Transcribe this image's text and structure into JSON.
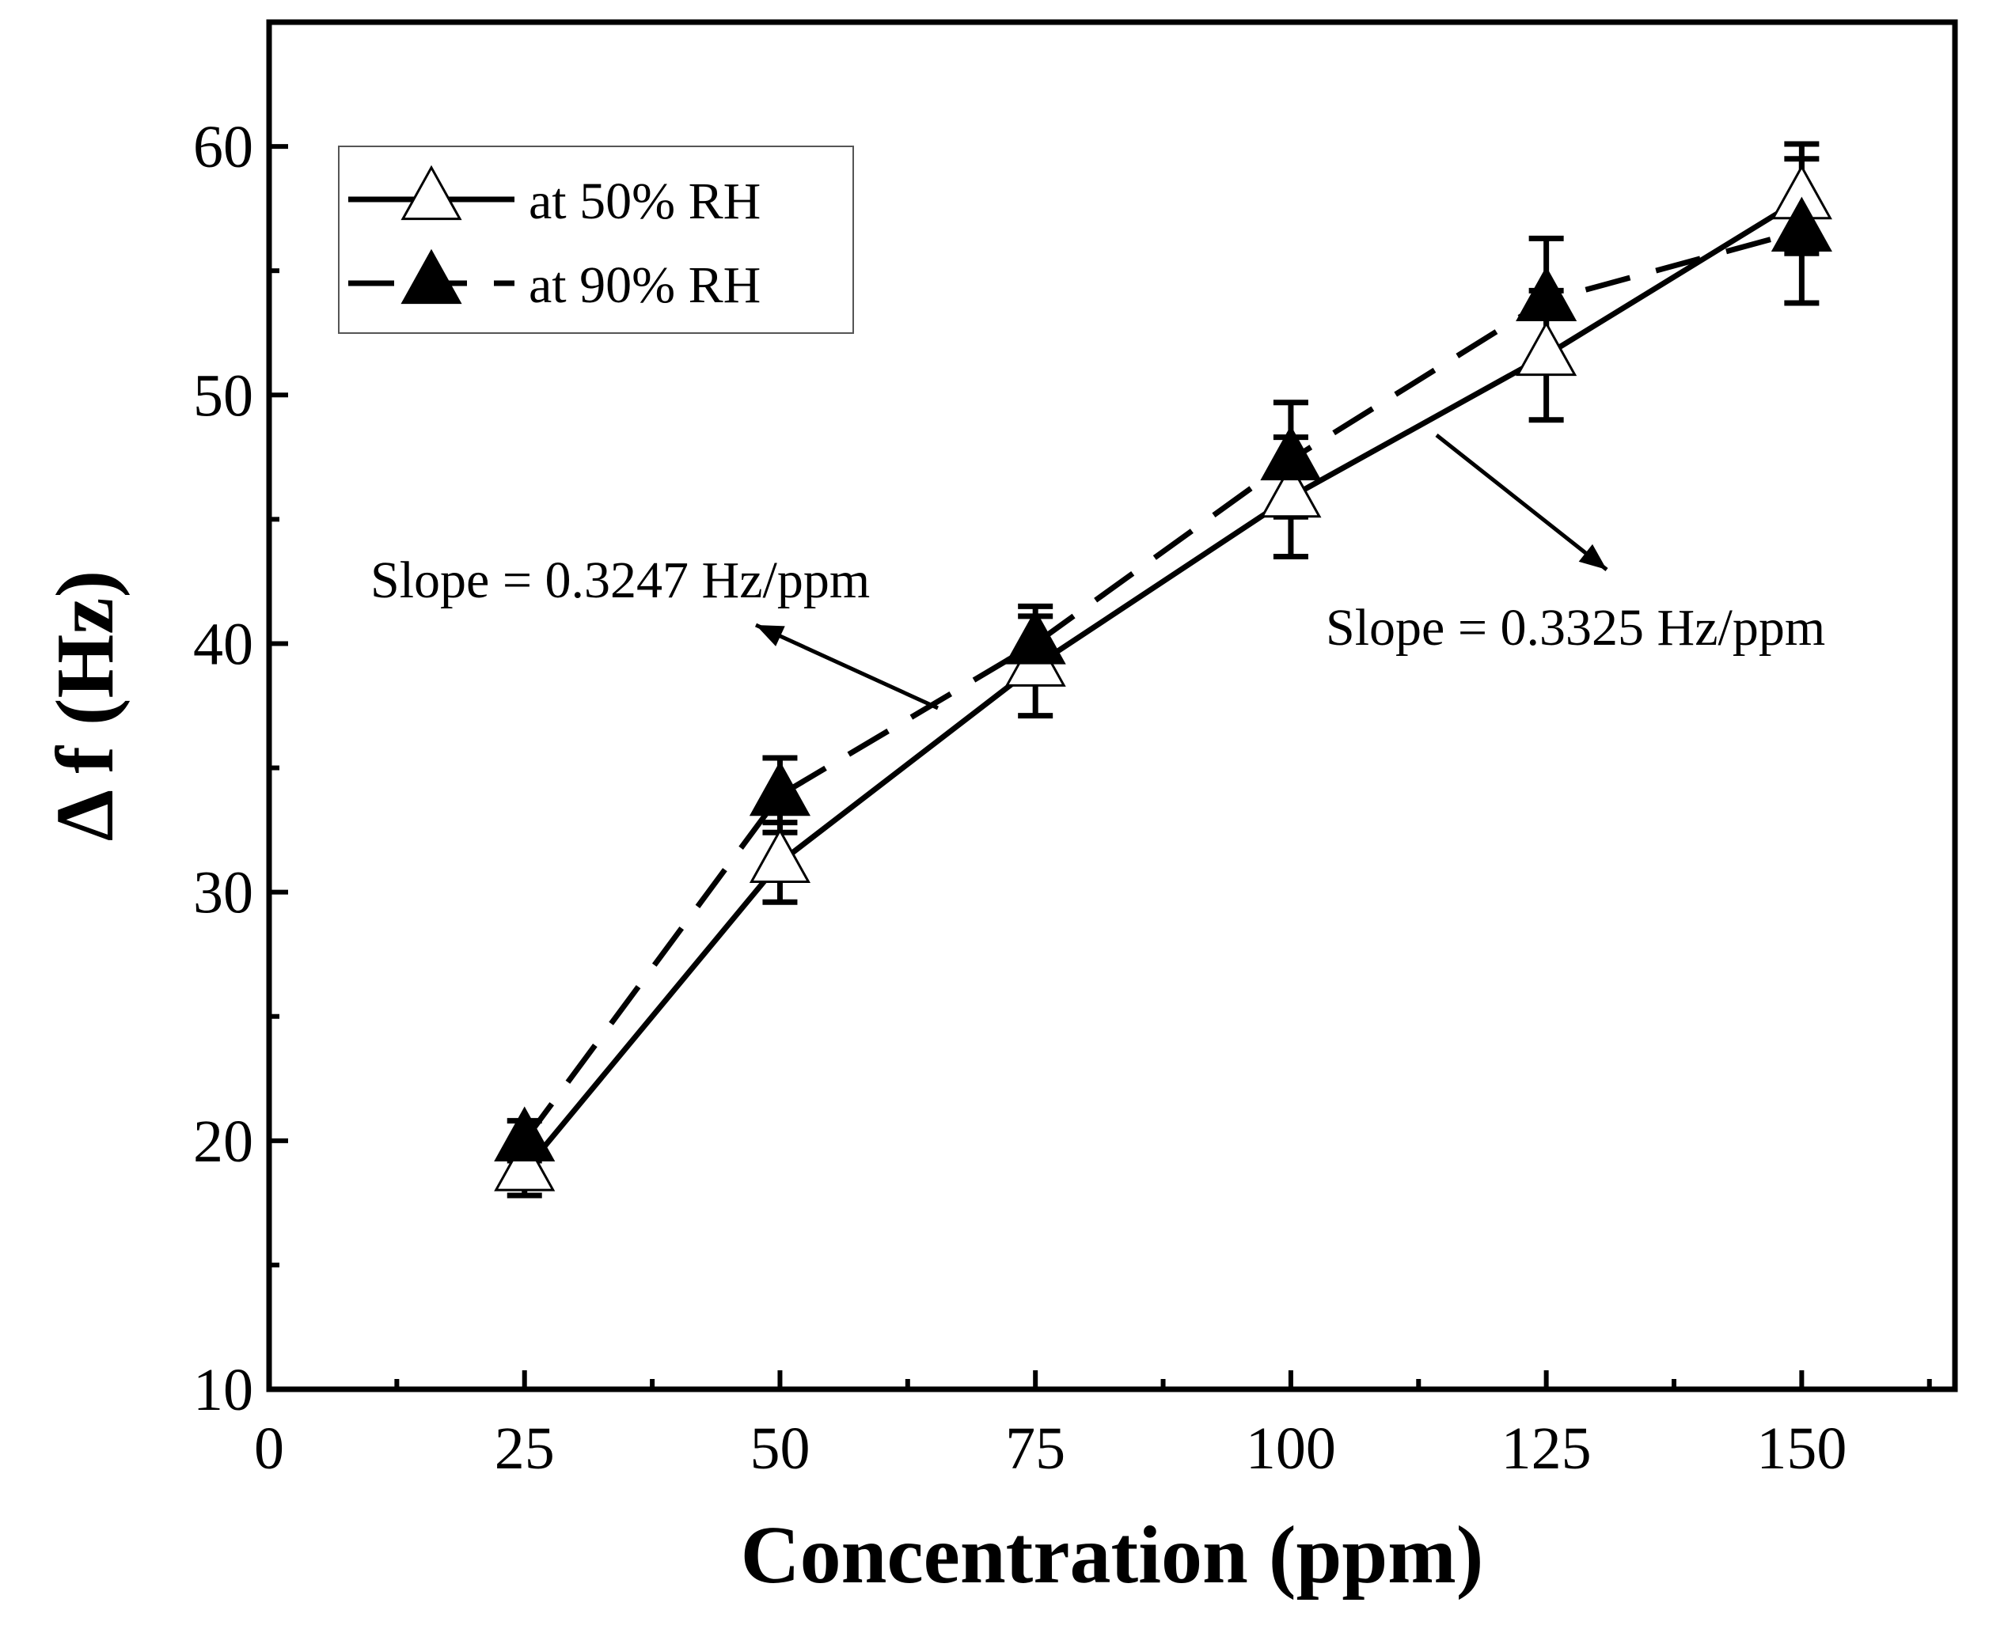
{
  "chart_data": {
    "type": "line",
    "title": "",
    "xlabel": "Concentration (ppm)",
    "ylabel": "Δ f (Hz)",
    "xlim": [
      0,
      165
    ],
    "ylim": [
      10,
      65
    ],
    "xticks": [
      0,
      25,
      50,
      75,
      100,
      125,
      150
    ],
    "yticks": [
      10,
      20,
      30,
      40,
      50,
      60
    ],
    "x_minor_step": 12.5,
    "y_minor_step": 5,
    "grid": false,
    "legend_position": "top-left",
    "series": [
      {
        "name": "at 50% RH",
        "marker": "open-triangle",
        "line_style": "solid",
        "color": "#000000",
        "x": [
          25,
          50,
          75,
          100,
          125,
          150
        ],
        "values": [
          18.8,
          31.2,
          39.1,
          45.9,
          51.6,
          57.9
        ],
        "error": [
          1.0,
          1.6,
          2.0,
          2.4,
          2.6,
          2.2
        ]
      },
      {
        "name": "at 90% RH",
        "marker": "filled-triangle",
        "line_style": "dashed",
        "color": "#000000",
        "x": [
          25,
          50,
          75,
          100,
          125,
          150
        ],
        "values": [
          20.0,
          33.9,
          40.0,
          47.4,
          53.8,
          56.6
        ],
        "error": [
          0.8,
          1.5,
          1.5,
          2.3,
          2.5,
          2.9
        ]
      }
    ],
    "annotations": [
      {
        "text": "Slope = 0.3247 Hz/ppm",
        "target_series": "at 90% RH"
      },
      {
        "text": "Slope = 0.3325 Hz/ppm",
        "target_series": "at 50% RH"
      }
    ]
  }
}
